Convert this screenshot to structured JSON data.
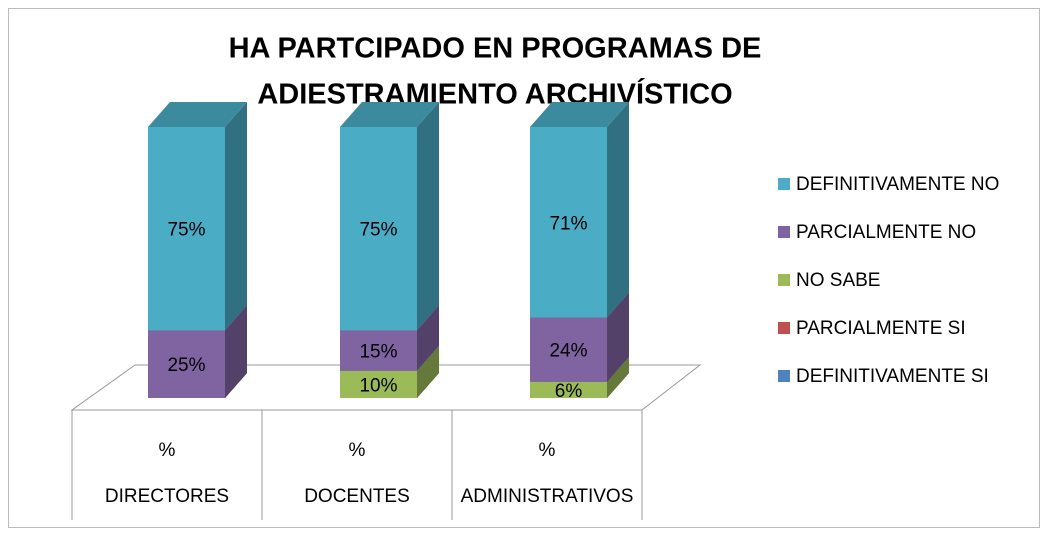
{
  "chart_data": {
    "type": "bar3d_stacked100",
    "title": [
      "HA PARTCIPADO EN PROGRAMAS DE",
      "ADIESTRAMIENTO ARCHIVÍSTICO"
    ],
    "categories": [
      "DIRECTORES",
      "DOCENTES",
      "ADMINISTRATIVOS"
    ],
    "subcategories": [
      "%",
      "%",
      "%"
    ],
    "series": [
      {
        "name": "DEFINITIVAMENTE SI",
        "color": "#4f81bd",
        "values": [
          0,
          0,
          0
        ],
        "value_labels": [
          null,
          null,
          null
        ]
      },
      {
        "name": "PARCIALMENTE SI",
        "color": "#c0504d",
        "values": [
          0,
          0,
          0
        ],
        "value_labels": [
          null,
          null,
          null
        ]
      },
      {
        "name": "NO SABE",
        "color": "#9bbb59",
        "values": [
          0,
          10,
          6
        ],
        "value_labels": [
          null,
          "10%",
          "6%"
        ]
      },
      {
        "name": "PARCIALMENTE NO",
        "color": "#8064a2",
        "values": [
          25,
          15,
          24
        ],
        "value_labels": [
          "25%",
          "15%",
          "24%"
        ]
      },
      {
        "name": "DEFINITIVAMENTE NO",
        "color": "#4bacc6",
        "values": [
          75,
          75,
          71
        ],
        "value_labels": [
          "75%",
          "75%",
          "71%"
        ]
      }
    ],
    "legend": "right"
  }
}
